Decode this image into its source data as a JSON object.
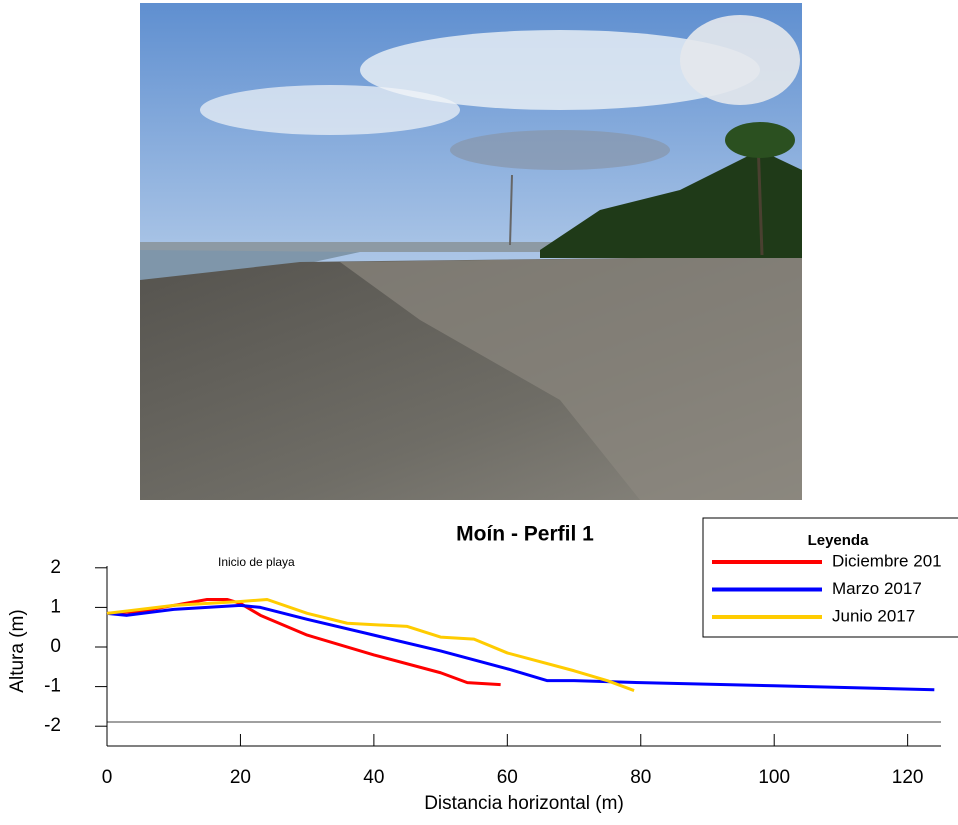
{
  "chart_data": {
    "type": "line",
    "title": "Moín - Perfil 1",
    "x_label": "Distancia horizontal (m)",
    "y_label": "Altura (m)",
    "annotation": "Inicio de playa",
    "legend_title": "Leyenda",
    "legend": "top-right",
    "xlim": [
      0,
      125
    ],
    "ylim": [
      -2.5,
      2.5
    ],
    "xticks": [
      0,
      20,
      40,
      60,
      80,
      100,
      120
    ],
    "yticks": [
      -2,
      -1,
      0,
      1,
      2
    ],
    "series": [
      {
        "name": "Diciembre 201",
        "color": "#ff0000",
        "x": [
          0,
          5,
          10,
          15,
          18,
          20,
          23,
          30,
          40,
          50,
          54,
          59
        ],
        "values": [
          0.85,
          0.9,
          1.05,
          1.2,
          1.2,
          1.1,
          0.8,
          0.3,
          -0.2,
          -0.65,
          -0.9,
          -0.95
        ]
      },
      {
        "name": "Marzo 2017",
        "color": "#0000ff",
        "x": [
          0,
          3,
          10,
          20,
          23,
          30,
          40,
          50,
          60,
          66,
          70,
          80,
          100,
          124
        ],
        "values": [
          0.85,
          0.8,
          0.95,
          1.05,
          1.0,
          0.7,
          0.3,
          -0.1,
          -0.55,
          -0.85,
          -0.85,
          -0.9,
          -0.98,
          -1.08
        ]
      },
      {
        "name": "Junio 2017",
        "color": "#ffcc00",
        "x": [
          0,
          10,
          20,
          24,
          30,
          36,
          45,
          50,
          55,
          60,
          70,
          75,
          79
        ],
        "values": [
          0.85,
          1.05,
          1.15,
          1.2,
          0.85,
          0.6,
          0.52,
          0.25,
          0.2,
          -0.15,
          -0.6,
          -0.85,
          -1.1
        ]
      }
    ]
  }
}
